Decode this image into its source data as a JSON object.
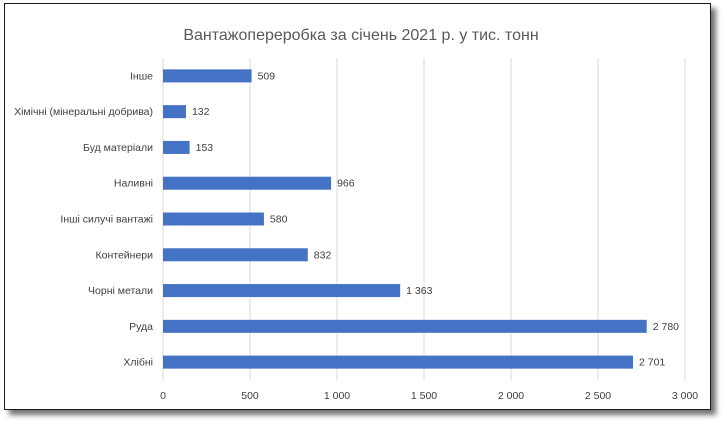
{
  "chart_data": {
    "type": "bar",
    "orientation": "horizontal",
    "title": "Вантажопереробка за січень 2021 р.  у тис. тонн",
    "categories": [
      "Інше",
      "Хімічні (мінеральні добрива)",
      "Буд        матеріали",
      "Наливні",
      "Інші силучі вантажі",
      "Контейнери",
      "Чорні метали",
      "Руда",
      "Хлібні"
    ],
    "values": [
      509,
      132,
      153,
      966,
      580,
      832,
      1363,
      2780,
      2701
    ],
    "value_labels": [
      "509",
      "132",
      "153",
      "966",
      "580",
      "832",
      "1 363",
      "2 780",
      "2 701"
    ],
    "xlim": [
      0,
      3000
    ],
    "x_ticks": [
      0,
      500,
      1000,
      1500,
      2000,
      2500,
      3000
    ],
    "x_tick_labels": [
      "0",
      "500",
      "1 000",
      "1 500",
      "2 000",
      "2 500",
      "3 000"
    ],
    "grid": true,
    "bar_color": "#4472c4"
  }
}
